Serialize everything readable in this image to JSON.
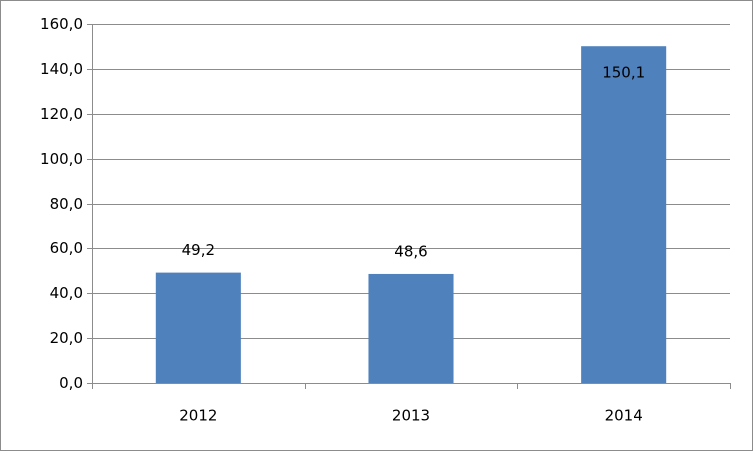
{
  "chart_data": {
    "type": "bar",
    "categories": [
      "2012",
      "2013",
      "2014"
    ],
    "values": [
      49.2,
      48.6,
      150.1
    ],
    "value_labels": [
      "49,2",
      "48,6",
      "150,1"
    ],
    "color": "#4f81bd",
    "ylim": [
      0,
      160
    ],
    "yticks": [
      {
        "value": 0,
        "label": "0,0"
      },
      {
        "value": 20,
        "label": "20,0"
      },
      {
        "value": 40,
        "label": "40,0"
      },
      {
        "value": 60,
        "label": "60,0"
      },
      {
        "value": 80,
        "label": "80,0"
      },
      {
        "value": 100,
        "label": "100,0"
      },
      {
        "value": 120,
        "label": "120,0"
      },
      {
        "value": 140,
        "label": "140,0"
      },
      {
        "value": 160,
        "label": "160,0"
      }
    ],
    "grid": true
  }
}
